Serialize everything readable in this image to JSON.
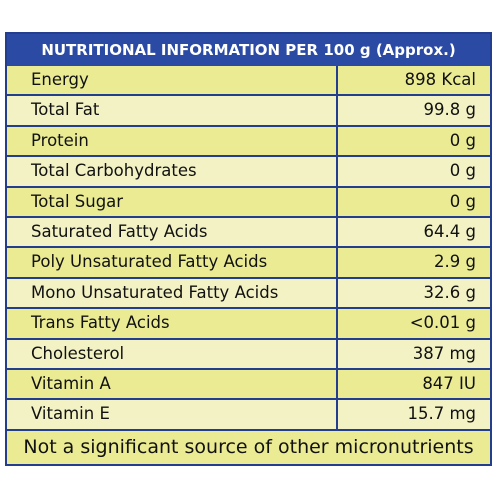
{
  "header": {
    "title": "NUTRITIONAL INFORMATION PER 100 g (Approx.)"
  },
  "rows": [
    {
      "name": "Energy",
      "value": "898 Kcal"
    },
    {
      "name": "Total Fat",
      "value": "99.8 g"
    },
    {
      "name": "Protein",
      "value": "0 g"
    },
    {
      "name": "Total Carbohydrates",
      "value": "0 g"
    },
    {
      "name": "Total Sugar",
      "value": "0 g"
    },
    {
      "name": "Saturated Fatty Acids",
      "value": "64.4 g"
    },
    {
      "name": "Poly Unsaturated Fatty Acids",
      "value": "2.9 g"
    },
    {
      "name": "Mono Unsaturated Fatty Acids",
      "value": "32.6 g"
    },
    {
      "name": "Trans Fatty Acids",
      "value": "<0.01 g"
    },
    {
      "name": "Cholesterol",
      "value": "387 mg"
    },
    {
      "name": "Vitamin A",
      "value": "847 IU"
    },
    {
      "name": "Vitamin E",
      "value": "15.7 mg"
    }
  ],
  "footer": {
    "note": "Not a significant source of other micronutrients"
  },
  "colors": {
    "header_bg": "#2b4aa4",
    "border": "#233e8f",
    "row_dark": "#eaeb93",
    "row_light": "#f3f2c4"
  }
}
